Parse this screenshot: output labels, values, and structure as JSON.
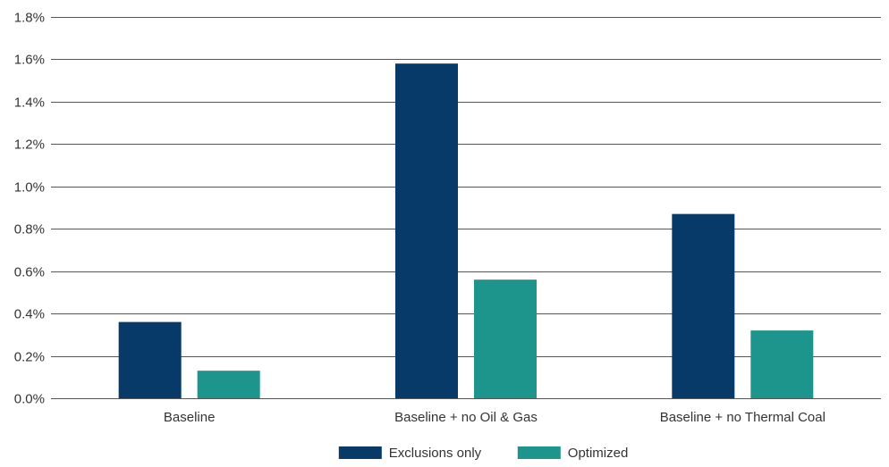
{
  "chart_data": {
    "type": "bar",
    "title": "",
    "xlabel": "",
    "ylabel": "",
    "categories": [
      "Baseline",
      "Baseline + no Oil & Gas",
      "Baseline + no Thermal Coal"
    ],
    "series": [
      {
        "name": "Exclusions only",
        "color": "#073a69",
        "values": [
          0.36,
          1.58,
          0.87
        ]
      },
      {
        "name": "Optimized",
        "color": "#1e958c",
        "values": [
          0.13,
          0.56,
          0.32
        ]
      }
    ],
    "ylim": [
      0,
      1.8
    ],
    "yticks": [
      0,
      0.2,
      0.4,
      0.6,
      0.8,
      1.0,
      1.2,
      1.4,
      1.6,
      1.8
    ],
    "ytick_labels": [
      "0.0%",
      "0.2%",
      "0.4%",
      "0.6%",
      "0.8%",
      "1.0%",
      "1.2%",
      "1.4%",
      "1.6%",
      "1.8%"
    ],
    "grid": true,
    "legend_position": "bottom-center",
    "gridline_color": "#555555"
  }
}
